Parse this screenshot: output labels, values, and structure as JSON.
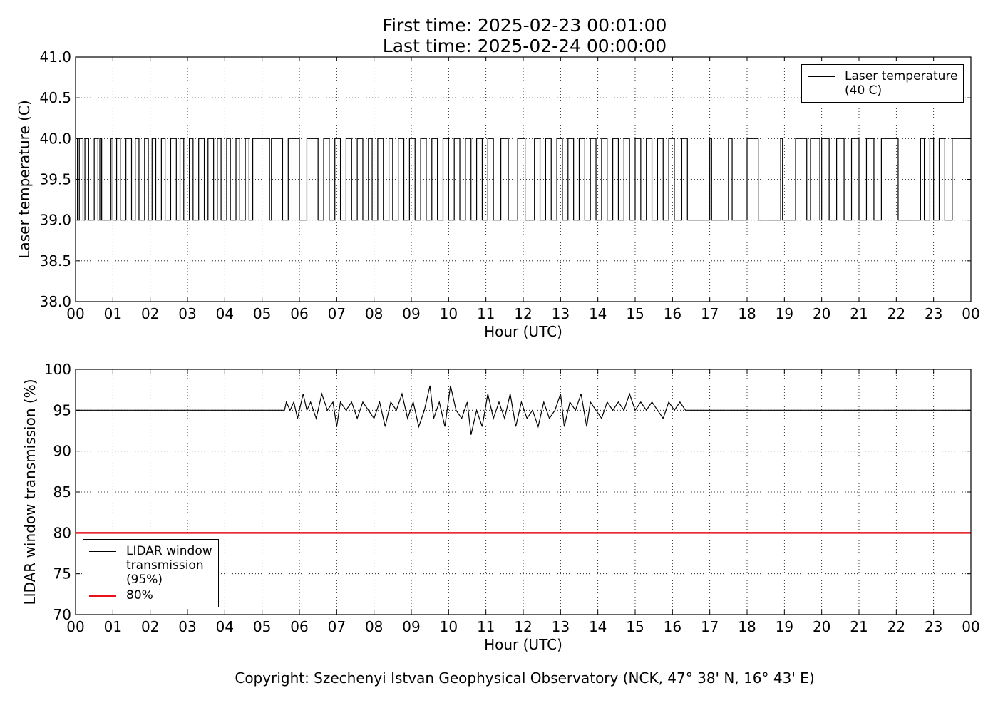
{
  "figure_title": [
    "First time: 2025-02-23 00:01:00",
    "Last time: 2025-02-24 00:00:00"
  ],
  "footer": "Copyright: Szechenyi Istvan Geophysical Observatory (NCK, 47° 38' N, 16° 43' E)",
  "chart_data": [
    {
      "type": "line",
      "drawstyle": "steps",
      "xlabel": "Hour (UTC)",
      "ylabel": "Laser temperature (C)",
      "xlim": [
        0,
        24
      ],
      "ylim": [
        38,
        41
      ],
      "grid": true,
      "legend": "upper right",
      "xticks": [
        {
          "value": 0,
          "label": "00"
        },
        {
          "value": 1,
          "label": "01"
        },
        {
          "value": 2,
          "label": "02"
        },
        {
          "value": 3,
          "label": "03"
        },
        {
          "value": 4,
          "label": "04"
        },
        {
          "value": 5,
          "label": "05"
        },
        {
          "value": 6,
          "label": "06"
        },
        {
          "value": 7,
          "label": "07"
        },
        {
          "value": 8,
          "label": "08"
        },
        {
          "value": 9,
          "label": "09"
        },
        {
          "value": 10,
          "label": "10"
        },
        {
          "value": 11,
          "label": "11"
        },
        {
          "value": 12,
          "label": "12"
        },
        {
          "value": 13,
          "label": "13"
        },
        {
          "value": 14,
          "label": "14"
        },
        {
          "value": 15,
          "label": "15"
        },
        {
          "value": 16,
          "label": "16"
        },
        {
          "value": 17,
          "label": "17"
        },
        {
          "value": 18,
          "label": "18"
        },
        {
          "value": 19,
          "label": "19"
        },
        {
          "value": 20,
          "label": "20"
        },
        {
          "value": 21,
          "label": "21"
        },
        {
          "value": 22,
          "label": "22"
        },
        {
          "value": 23,
          "label": "23"
        },
        {
          "value": 24,
          "label": "00"
        }
      ],
      "yticks": [
        {
          "value": 38,
          "label": "38.0"
        },
        {
          "value": 38.5,
          "label": "38.5"
        },
        {
          "value": 39,
          "label": "39.0"
        },
        {
          "value": 39.5,
          "label": "39.5"
        },
        {
          "value": 40,
          "label": "40.0"
        },
        {
          "value": 40.5,
          "label": "40.5"
        },
        {
          "value": 41,
          "label": "41.0"
        }
      ],
      "series": [
        {
          "name": "Laser temperature\n(40 C)",
          "color": "#000000",
          "width": 1.2,
          "x": [
            0,
            0.05,
            0.1,
            0.2,
            0.25,
            0.35,
            0.5,
            0.6,
            0.65,
            0.7,
            0.95,
            1,
            1.1,
            1.2,
            1.35,
            1.5,
            1.6,
            1.7,
            1.85,
            1.95,
            2.05,
            2.15,
            2.3,
            2.4,
            2.55,
            2.7,
            2.8,
            2.9,
            3.05,
            3.15,
            3.3,
            3.45,
            3.55,
            3.7,
            3.8,
            3.9,
            4.05,
            4.15,
            4.3,
            4.4,
            4.55,
            4.65,
            4.75,
            5.2,
            5.25,
            5.55,
            5.7,
            6,
            6.2,
            6.5,
            6.65,
            6.8,
            6.95,
            7.1,
            7.25,
            7.4,
            7.55,
            7.7,
            7.85,
            7.95,
            8.1,
            8.25,
            8.4,
            8.5,
            8.65,
            8.8,
            8.95,
            9.1,
            9.25,
            9.4,
            9.55,
            9.7,
            9.85,
            10,
            10.15,
            10.3,
            10.45,
            10.6,
            10.75,
            10.9,
            11.05,
            11.2,
            11.4,
            11.6,
            11.85,
            12.05,
            12.3,
            12.45,
            12.6,
            12.75,
            12.9,
            13.05,
            13.2,
            13.35,
            13.5,
            13.65,
            13.8,
            13.95,
            14.1,
            14.25,
            14.4,
            14.55,
            14.7,
            14.85,
            15,
            15.15,
            15.3,
            15.45,
            15.6,
            15.75,
            15.9,
            16.05,
            16.25,
            16.4,
            17,
            17.05,
            17.5,
            17.6,
            18,
            18.3,
            18.9,
            18.95,
            19.3,
            19.6,
            19.7,
            19.95,
            20,
            20.2,
            20.4,
            20.6,
            20.8,
            21,
            21.2,
            21.4,
            21.6,
            22.05,
            22.65,
            22.75,
            22.9,
            23,
            23.15,
            23.3,
            23.5,
            24
          ],
          "values": [
            40,
            39,
            40,
            39,
            40,
            39,
            40,
            39,
            40,
            39,
            40,
            39,
            40,
            39,
            40,
            39,
            40,
            39,
            40,
            39,
            40,
            39,
            40,
            39,
            40,
            39,
            40,
            39,
            40,
            39,
            40,
            39,
            40,
            39,
            40,
            39,
            40,
            39,
            40,
            39,
            40,
            39,
            40,
            39,
            40,
            39,
            40,
            39,
            40,
            39,
            40,
            39,
            40,
            39,
            40,
            39,
            40,
            39,
            40,
            39,
            40,
            39,
            40,
            39,
            40,
            39,
            40,
            39,
            40,
            39,
            40,
            39,
            40,
            39,
            40,
            39,
            40,
            39,
            40,
            39,
            40,
            39,
            40,
            39,
            40,
            39,
            40,
            39,
            40,
            39,
            40,
            39,
            40,
            39,
            40,
            39,
            40,
            39,
            40,
            39,
            40,
            39,
            40,
            39,
            40,
            39,
            40,
            39,
            40,
            39,
            40,
            39,
            40,
            39,
            40,
            39,
            40,
            39,
            40,
            39,
            40,
            39,
            40,
            39,
            40,
            39,
            40,
            39,
            40,
            39,
            40,
            39,
            40,
            39,
            40,
            39,
            40,
            39,
            40,
            39,
            40,
            39,
            40,
            40
          ]
        }
      ]
    },
    {
      "type": "line",
      "drawstyle": "lines",
      "xlabel": "Hour (UTC)",
      "ylabel": "LIDAR window transmission (%)",
      "xlim": [
        0,
        24
      ],
      "ylim": [
        70,
        100
      ],
      "grid": true,
      "legend": "lower left",
      "xticks": [
        {
          "value": 0,
          "label": "00"
        },
        {
          "value": 1,
          "label": "01"
        },
        {
          "value": 2,
          "label": "02"
        },
        {
          "value": 3,
          "label": "03"
        },
        {
          "value": 4,
          "label": "04"
        },
        {
          "value": 5,
          "label": "05"
        },
        {
          "value": 6,
          "label": "06"
        },
        {
          "value": 7,
          "label": "07"
        },
        {
          "value": 8,
          "label": "08"
        },
        {
          "value": 9,
          "label": "09"
        },
        {
          "value": 10,
          "label": "10"
        },
        {
          "value": 11,
          "label": "11"
        },
        {
          "value": 12,
          "label": "12"
        },
        {
          "value": 13,
          "label": "13"
        },
        {
          "value": 14,
          "label": "14"
        },
        {
          "value": 15,
          "label": "15"
        },
        {
          "value": 16,
          "label": "16"
        },
        {
          "value": 17,
          "label": "17"
        },
        {
          "value": 18,
          "label": "18"
        },
        {
          "value": 19,
          "label": "19"
        },
        {
          "value": 20,
          "label": "20"
        },
        {
          "value": 21,
          "label": "21"
        },
        {
          "value": 22,
          "label": "22"
        },
        {
          "value": 23,
          "label": "23"
        },
        {
          "value": 24,
          "label": "00"
        }
      ],
      "yticks": [
        70,
        75,
        80,
        85,
        90,
        95,
        100
      ],
      "series": [
        {
          "name": "LIDAR window\ntransmission\n(95%)",
          "color": "#000000",
          "width": 1.2,
          "x": [
            0,
            5.6,
            5.65,
            5.75,
            5.85,
            5.95,
            6.1,
            6.2,
            6.3,
            6.45,
            6.6,
            6.75,
            6.9,
            7,
            7.1,
            7.25,
            7.4,
            7.55,
            7.7,
            7.85,
            8,
            8.15,
            8.3,
            8.45,
            8.6,
            8.75,
            8.9,
            9.05,
            9.2,
            9.35,
            9.5,
            9.6,
            9.75,
            9.9,
            10.05,
            10.2,
            10.35,
            10.5,
            10.6,
            10.75,
            10.9,
            11.05,
            11.2,
            11.35,
            11.5,
            11.65,
            11.8,
            11.95,
            12.1,
            12.25,
            12.4,
            12.55,
            12.7,
            12.85,
            13,
            13.1,
            13.25,
            13.4,
            13.55,
            13.7,
            13.8,
            13.95,
            14.1,
            14.25,
            14.4,
            14.55,
            14.7,
            14.85,
            15,
            15.15,
            15.3,
            15.45,
            15.6,
            15.75,
            15.9,
            16.05,
            16.2,
            16.35,
            16.4,
            24
          ],
          "values": [
            95,
            95,
            96,
            95,
            96,
            94,
            97,
            95,
            96,
            94,
            97,
            95,
            96,
            93,
            96,
            95,
            96,
            94,
            96,
            95,
            94,
            96,
            93,
            96,
            95,
            97,
            94,
            96,
            93,
            95,
            98,
            94,
            96,
            93,
            98,
            95,
            94,
            96,
            92,
            95,
            93,
            97,
            94,
            96,
            94,
            97,
            93,
            96,
            94,
            95,
            93,
            96,
            94,
            95,
            97,
            93,
            96,
            95,
            97,
            93,
            96,
            95,
            94,
            96,
            95,
            96,
            95,
            97,
            95,
            96,
            95,
            96,
            95,
            94,
            96,
            95,
            96,
            95,
            95,
            95
          ]
        },
        {
          "name": "80%",
          "color": "#e8111a",
          "width": 2.5,
          "x": [
            0,
            24
          ],
          "values": [
            80,
            80
          ]
        }
      ]
    }
  ]
}
